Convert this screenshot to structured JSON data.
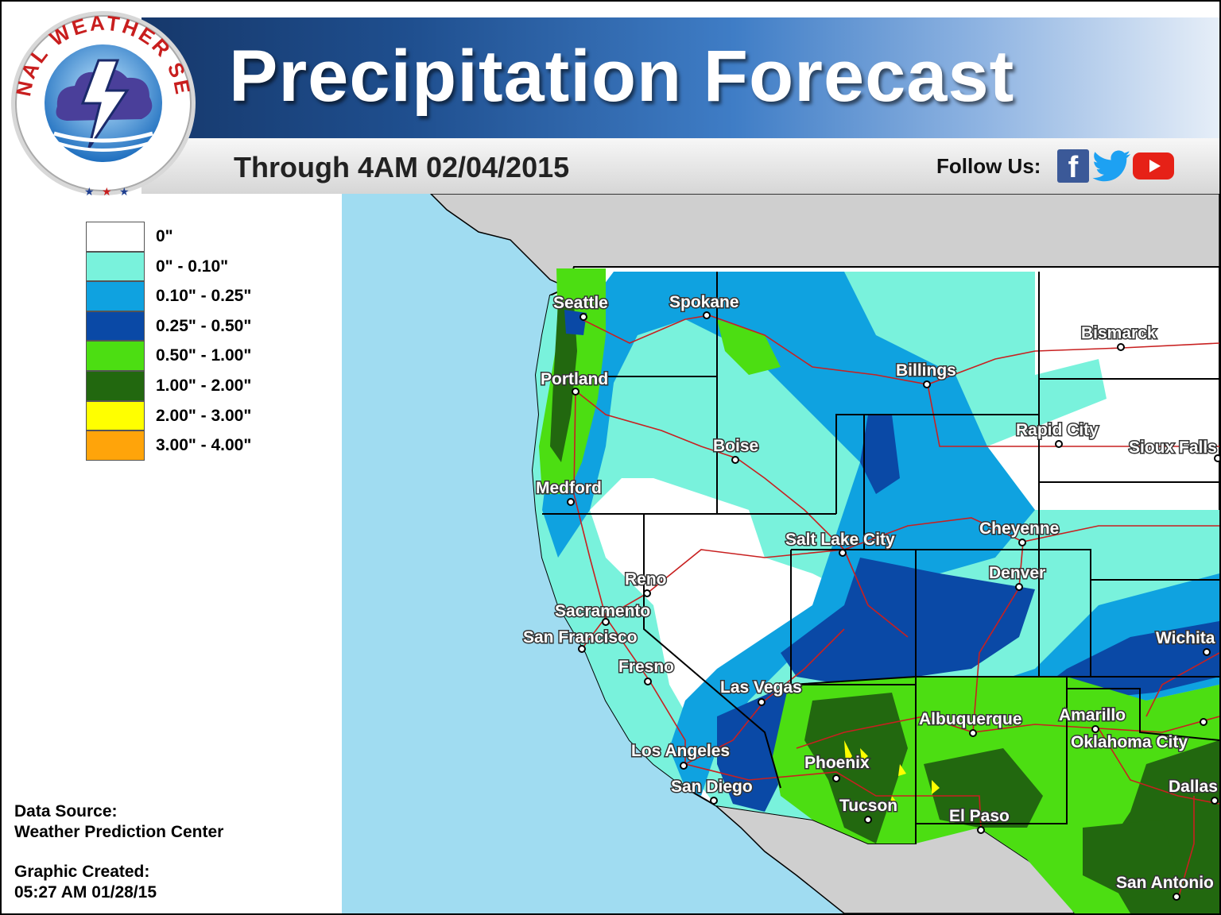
{
  "header": {
    "title": "Precipitation Forecast",
    "subtitle": "Through 4AM 02/04/2015",
    "follow_label": "Follow Us:",
    "social_icons": [
      "facebook-icon",
      "twitter-icon",
      "youtube-icon"
    ],
    "facebook_glyph": "f"
  },
  "logo": {
    "text": "NATIONAL WEATHER SERVICE",
    "colors": {
      "ring": "#ffffff",
      "text": "#c81e1e",
      "inner": "#1f6fbf",
      "cloud": "#4a3f9a"
    }
  },
  "legend": {
    "items": [
      {
        "label": "0\"",
        "color": "#ffffff"
      },
      {
        "label": "0\" - 0.10\"",
        "color": "#79f2dc"
      },
      {
        "label": "0.10\" - 0.25\"",
        "color": "#0fa2e0"
      },
      {
        "label": "0.25\" - 0.50\"",
        "color": "#0a49a6"
      },
      {
        "label": "0.50\" - 1.00\"",
        "color": "#4cde12"
      },
      {
        "label": "1.00\" - 2.00\"",
        "color": "#22680f"
      },
      {
        "label": "2.00\" - 3.00\"",
        "color": "#ffff00"
      },
      {
        "label": "3.00\" - 4.00\"",
        "color": "#ffa40a"
      }
    ]
  },
  "footer": {
    "source_label": "Data Source:",
    "source_value": "Weather Prediction Center",
    "created_label": "Graphic Created:",
    "created_value": "05:27 AM 01/28/15"
  },
  "map": {
    "colors": {
      "ocean": "#a0dcf1",
      "canada_mexico": "#cfcfcf",
      "roads": "#c82020",
      "borders": "#000000"
    },
    "cities": [
      "Seattle",
      "Spokane",
      "Portland",
      "Billings",
      "Bismarck",
      "Boise",
      "Rapid City",
      "Sioux Falls",
      "Medford",
      "Cheyenne",
      "Salt Lake City",
      "Denver",
      "Reno",
      "Sacramento",
      "San Francisco",
      "Wichita",
      "Fresno",
      "Las Vegas",
      "Amarillo",
      "Albuquerque",
      "Oklahoma City",
      "Los Angeles",
      "Phoenix",
      "San Diego",
      "Dallas",
      "Tucson",
      "El Paso",
      "San Antonio"
    ]
  }
}
